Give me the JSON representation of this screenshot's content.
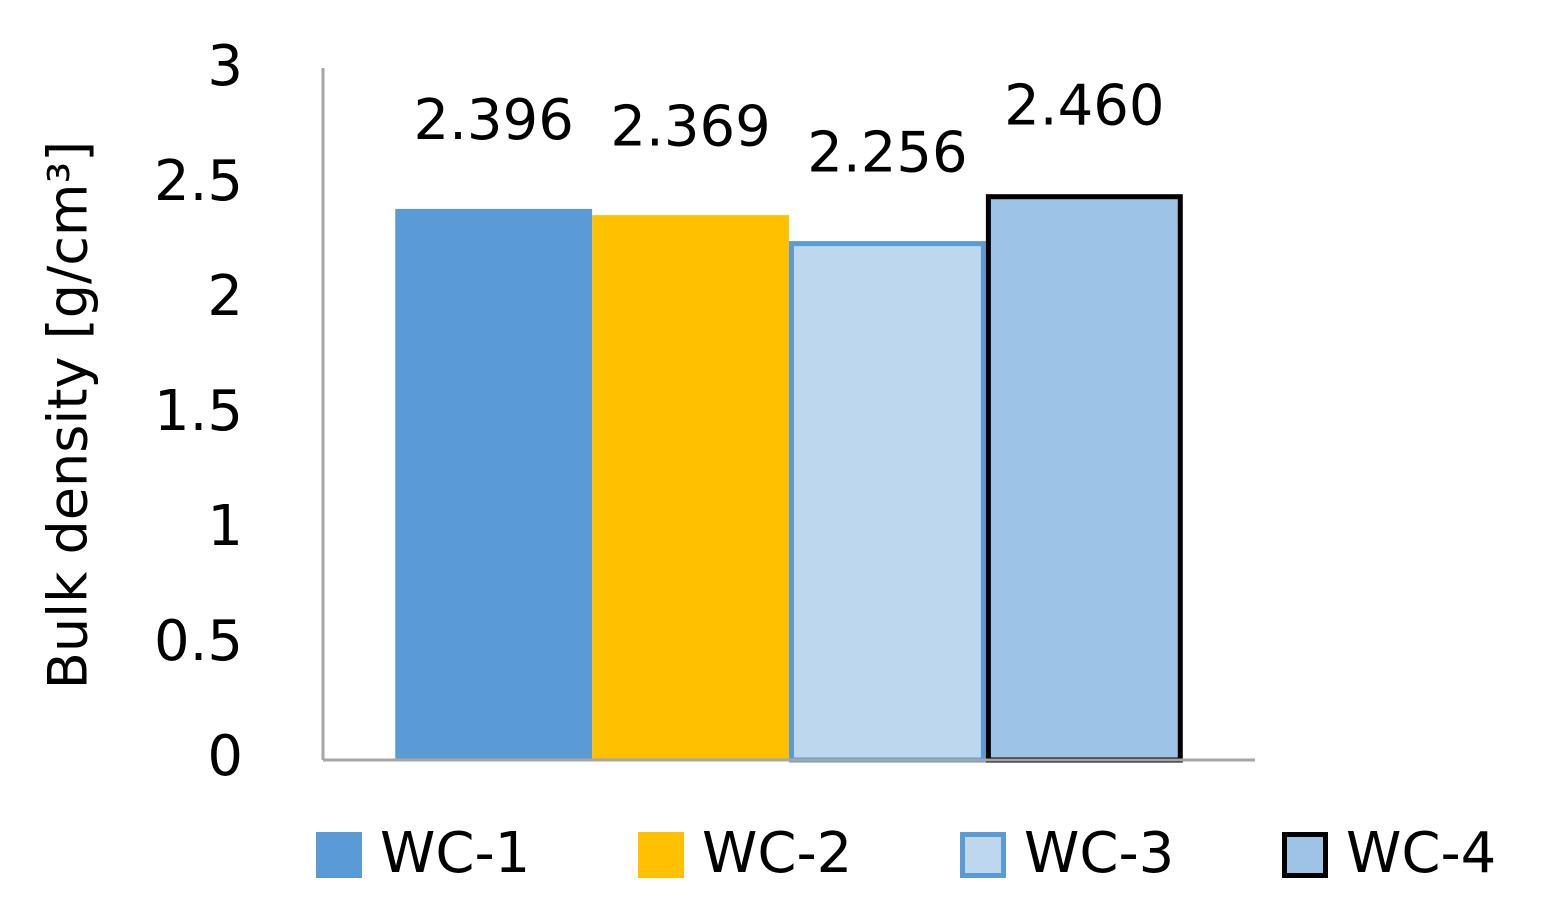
{
  "chart_data": {
    "type": "bar",
    "y_label": "Bulk density [g/cm³]",
    "categories": [
      null
    ],
    "series": [
      {
        "name": "WC-1",
        "color": "#5b9bd5",
        "values": [
          2.396
        ],
        "value_labels": [
          "2.396"
        ]
      },
      {
        "name": "WC-2",
        "color": "#ffc000",
        "values": [
          2.369
        ],
        "value_labels": [
          "2.369"
        ]
      },
      {
        "name": "WC-3",
        "color": "#bdd7ee",
        "edgecolor": "#5b9bd5",
        "values": [
          2.256
        ],
        "value_labels": [
          "2.256"
        ]
      },
      {
        "name": "WC-4",
        "color": "#9dc3e6",
        "edgecolor": "#000000",
        "values": [
          2.46
        ],
        "value_labels": [
          "2.460"
        ]
      }
    ],
    "ylim": [
      0,
      3
    ],
    "yticks": [
      0,
      0.5,
      1,
      1.5,
      2,
      2.5,
      3
    ],
    "grid": false,
    "legend": "bottom"
  }
}
